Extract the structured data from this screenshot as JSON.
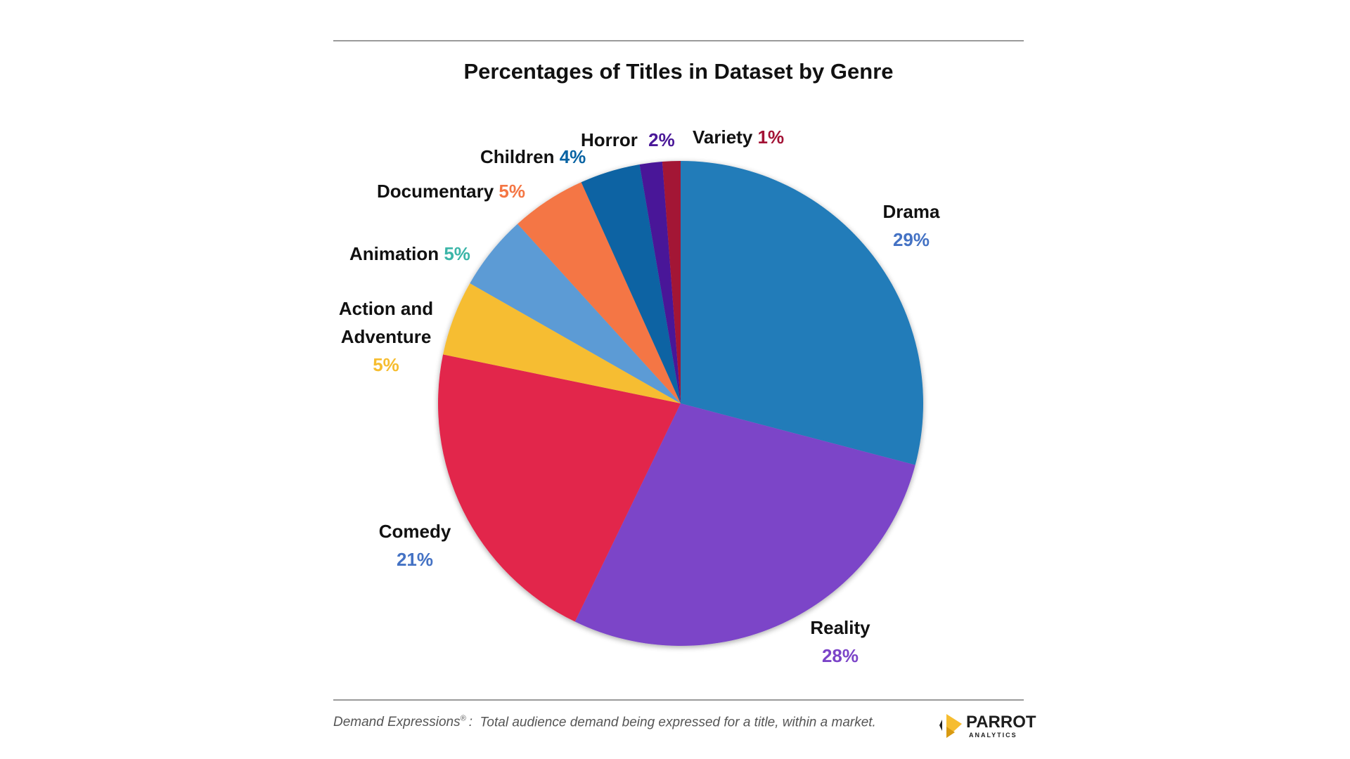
{
  "chart_data": {
    "type": "pie",
    "title": "Percentages of Titles in Dataset by Genre",
    "slices": [
      {
        "name": "Drama",
        "value": 29,
        "label": "29%",
        "color": "#237bb9",
        "pct_color": "#4472c4"
      },
      {
        "name": "Reality",
        "value": 28,
        "label": "28%",
        "color": "#7b44c8",
        "pct_color": "#7b44c8"
      },
      {
        "name": "Comedy",
        "value": 21,
        "label": "21%",
        "color": "#e2264c",
        "pct_color": "#4472c4"
      },
      {
        "name": "Action and Adventure",
        "name_lines": [
          "Action and",
          "Adventure"
        ],
        "value": 5,
        "label": "5%",
        "color": "#f6bd30",
        "pct_color": "#f6bd30"
      },
      {
        "name": "Animation",
        "value": 5,
        "label": "5%",
        "color": "#5b9bd5",
        "pct_color": "#3bb5a8"
      },
      {
        "name": "Documentary",
        "value": 5,
        "label": "5%",
        "color": "#f47644",
        "pct_color": "#f47644"
      },
      {
        "name": "Children",
        "value": 4,
        "label": "4%",
        "color": "#0863a3",
        "pct_color": "#0863a3"
      },
      {
        "name": "Horror",
        "value": 1.5,
        "label": "2%",
        "color": "#4a1898",
        "pct_color": "#4a1898"
      },
      {
        "name": "Variety",
        "value": 1.2,
        "label": "1%",
        "color": "#a31235",
        "pct_color": "#a31235"
      }
    ],
    "start_angle_deg": 0,
    "direction": "clockwise"
  },
  "footer": {
    "term": "Demand Expressions",
    "term_mark": "®",
    "separator": ":",
    "description": "Total audience demand being expressed for a title, within a market."
  },
  "logo": {
    "word": "PARROT",
    "sub": "ANALYTICS",
    "colors": [
      "#f6bd30",
      "#222222"
    ]
  }
}
